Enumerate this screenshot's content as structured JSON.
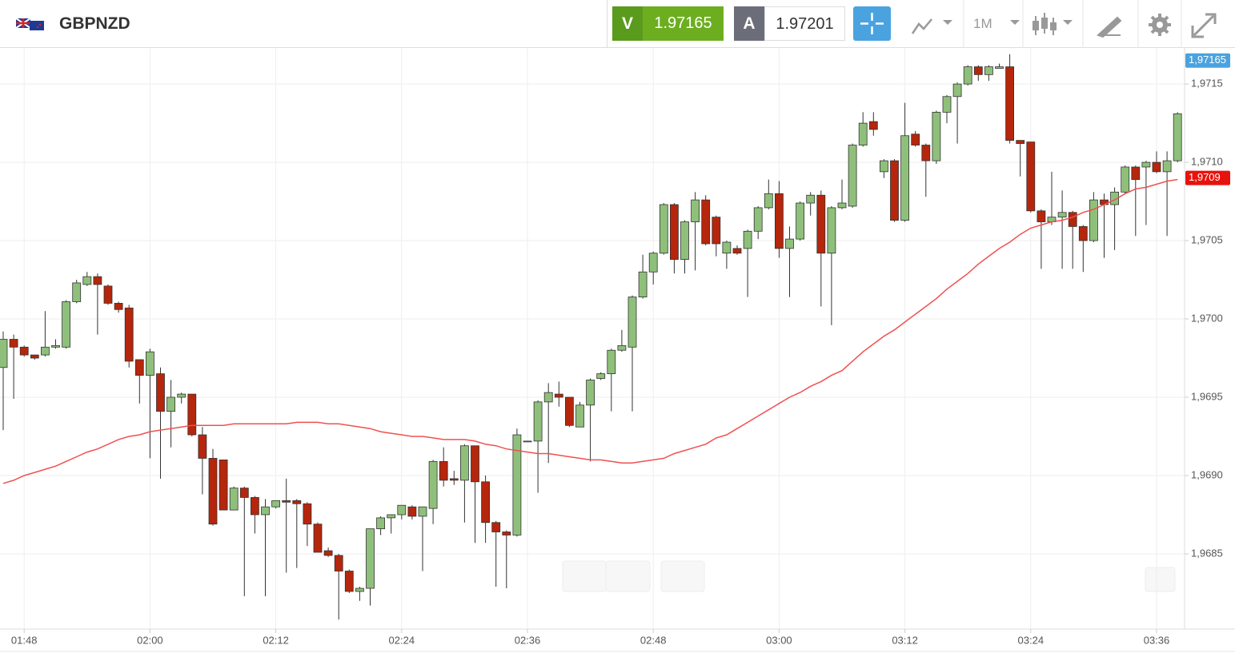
{
  "toolbar": {
    "symbol": "GBPNZD",
    "sell_label": "V",
    "sell_price": "1.97165",
    "buy_label": "A",
    "buy_price": "1.97201",
    "timeframe": "1M"
  },
  "chart_data": {
    "type": "candlestick",
    "categories": [
      null,
      null,
      "01:48",
      null,
      null,
      null,
      null,
      null,
      null,
      null,
      null,
      null,
      null,
      null,
      "02:00",
      null,
      null,
      null,
      null,
      null,
      null,
      null,
      null,
      null,
      null,
      null,
      "02:12",
      null,
      null,
      null,
      null,
      null,
      null,
      null,
      null,
      null,
      null,
      null,
      "02:24",
      null,
      null,
      null,
      null,
      null,
      null,
      null,
      null,
      null,
      null,
      null,
      "02:36",
      null,
      null,
      null,
      null,
      null,
      null,
      null,
      null,
      null,
      null,
      null,
      "02:48",
      null,
      null,
      null,
      null,
      null,
      null,
      null,
      null,
      null,
      null,
      null,
      "03:00",
      null,
      null,
      null,
      null,
      null,
      null,
      null,
      null,
      null,
      null,
      null,
      "03:12",
      null,
      null,
      null,
      null,
      null,
      null,
      null,
      null,
      null,
      null,
      null,
      "03:24",
      null,
      null,
      null,
      null,
      null,
      null,
      null,
      null,
      null,
      null,
      null,
      "03:36",
      null,
      null
    ],
    "open": [
      1.96969,
      1.96987,
      1.96982,
      1.96977,
      1.96977,
      1.96982,
      1.96982,
      1.97011,
      1.97022,
      1.97027,
      1.97021,
      1.9701,
      1.97007,
      1.96974,
      1.96964,
      1.96965,
      1.96941,
      1.9695,
      1.96952,
      1.96926,
      1.96911,
      1.9691,
      1.96878,
      1.96892,
      1.96886,
      1.96875,
      1.9688,
      1.96884,
      1.96884,
      1.96882,
      1.96869,
      1.96852,
      1.96849,
      1.96839,
      1.96826,
      1.96828,
      1.96866,
      1.96873,
      1.96875,
      1.9688,
      1.96874,
      1.96879,
      1.96909,
      1.96898,
      1.96897,
      1.96919,
      1.96896,
      1.9687,
      1.96864,
      1.96862,
      1.96922,
      1.96922,
      1.96947,
      1.96952,
      1.9695,
      1.96931,
      1.96945,
      1.96962,
      1.96965,
      1.9698,
      1.96982,
      1.97014,
      1.9703,
      1.97042,
      1.97073,
      1.97038,
      1.97062,
      1.97076,
      1.97065,
      1.97042,
      1.97045,
      1.97045,
      1.97056,
      1.97071,
      1.9708,
      1.97045,
      1.97051,
      1.97074,
      1.97079,
      1.97042,
      1.97071,
      1.97072,
      1.97111,
      1.97126,
      1.97094,
      1.97101,
      1.97063,
      1.97118,
      1.97111,
      1.97101,
      1.97132,
      1.97142,
      1.9715,
      1.97161,
      1.97156,
      1.9716,
      1.97161,
      1.97114,
      1.97113,
      1.97069,
      1.97062,
      1.97065,
      1.97068,
      1.97059,
      1.9705,
      1.97076,
      1.97073,
      1.97081,
      1.97097,
      1.97097,
      1.971,
      1.97094,
      1.97101
    ],
    "high": [
      1.96992,
      1.9699,
      1.96983,
      1.96977,
      1.97005,
      1.96987,
      1.97012,
      1.97025,
      1.9703,
      1.97029,
      1.97022,
      1.97011,
      1.97009,
      1.96974,
      1.96981,
      1.96969,
      1.96961,
      1.96953,
      1.96952,
      1.96931,
      1.96917,
      1.9691,
      1.96893,
      1.96893,
      1.96887,
      1.96885,
      1.96884,
      1.96898,
      1.96885,
      1.96883,
      1.9687,
      1.96854,
      1.9685,
      1.9684,
      1.96829,
      1.96866,
      1.96874,
      1.96875,
      1.96881,
      1.96881,
      1.9688,
      1.9691,
      1.96918,
      1.96903,
      1.9692,
      1.96919,
      1.969,
      1.96871,
      1.96865,
      1.9693,
      1.96922,
      1.96948,
      1.96959,
      1.9696,
      1.9695,
      1.96947,
      1.96962,
      1.96966,
      1.96981,
      1.96993,
      1.97015,
      1.97041,
      1.97043,
      1.97074,
      1.97074,
      1.97063,
      1.97081,
      1.97079,
      1.97066,
      1.9705,
      1.97047,
      1.97057,
      1.97072,
      1.97089,
      1.97088,
      1.97059,
      1.97075,
      1.97081,
      1.97082,
      1.97072,
      1.97089,
      1.97112,
      1.97132,
      1.97132,
      1.97102,
      1.97102,
      1.97138,
      1.9712,
      1.97112,
      1.97133,
      1.97143,
      1.97151,
      1.97162,
      1.97162,
      1.97162,
      1.97163,
      1.97169,
      1.97114,
      1.97113,
      1.9707,
      1.97094,
      1.97082,
      1.97069,
      1.9706,
      1.97081,
      1.9708,
      1.97084,
      1.97098,
      1.97098,
      1.97101,
      1.97107,
      1.97107,
      1.97132
    ],
    "low": [
      1.96929,
      1.96949,
      1.96976,
      1.96974,
      1.96976,
      1.96981,
      1.96981,
      1.9701,
      1.97021,
      1.9699,
      1.97009,
      1.97004,
      1.96969,
      1.96946,
      1.96911,
      1.96898,
      1.96918,
      1.96946,
      1.96925,
      1.96888,
      1.96868,
      1.96878,
      1.96878,
      1.96823,
      1.96863,
      1.96823,
      1.96879,
      1.96838,
      1.96841,
      1.96855,
      1.96851,
      1.96848,
      1.96808,
      1.96825,
      1.9682,
      1.96817,
      1.96862,
      1.96863,
      1.96872,
      1.96872,
      1.96839,
      1.96869,
      1.96893,
      1.96894,
      1.9687,
      1.96857,
      1.96857,
      1.96829,
      1.96828,
      1.96861,
      1.96922,
      1.96889,
      1.96908,
      1.96944,
      1.96931,
      1.96931,
      1.96909,
      1.96961,
      1.96941,
      1.96979,
      1.96941,
      1.97013,
      1.97022,
      1.97041,
      1.97029,
      1.97029,
      1.97031,
      1.97047,
      1.9704,
      1.97032,
      1.97041,
      1.97014,
      1.97051,
      1.9707,
      1.97039,
      1.97014,
      1.9705,
      1.97066,
      1.97008,
      1.96996,
      1.9707,
      1.97071,
      1.9711,
      1.97117,
      1.9709,
      1.97062,
      1.97062,
      1.9711,
      1.97078,
      1.97099,
      1.97125,
      1.97112,
      1.97149,
      1.97152,
      1.97152,
      1.9716,
      1.97112,
      1.97091,
      1.97068,
      1.97032,
      1.9706,
      1.97032,
      1.97032,
      1.9703,
      1.97049,
      1.97039,
      1.97044,
      1.9708,
      1.97053,
      1.9706,
      1.97093,
      1.97053,
      1.971
    ],
    "close": [
      1.96987,
      1.96982,
      1.96977,
      1.96975,
      1.96982,
      1.96983,
      1.97011,
      1.97023,
      1.97027,
      1.97022,
      1.9701,
      1.97006,
      1.96973,
      1.96964,
      1.96979,
      1.96941,
      1.9695,
      1.96952,
      1.96926,
      1.96911,
      1.96869,
      1.96878,
      1.96892,
      1.96886,
      1.96875,
      1.9688,
      1.96884,
      1.96883,
      1.96882,
      1.96869,
      1.96851,
      1.96849,
      1.96839,
      1.96826,
      1.96828,
      1.96866,
      1.96873,
      1.96875,
      1.96881,
      1.96874,
      1.9688,
      1.96909,
      1.96897,
      1.96897,
      1.96919,
      1.96896,
      1.9687,
      1.96864,
      1.96862,
      1.96926,
      1.96922,
      1.96947,
      1.96953,
      1.9695,
      1.96932,
      1.96945,
      1.96961,
      1.96965,
      1.9698,
      1.96983,
      1.97014,
      1.9703,
      1.97042,
      1.97073,
      1.97038,
      1.97062,
      1.97076,
      1.97048,
      1.97048,
      1.97049,
      1.97042,
      1.97056,
      1.97071,
      1.9708,
      1.97045,
      1.97051,
      1.97074,
      1.97079,
      1.97042,
      1.97071,
      1.97074,
      1.97111,
      1.97125,
      1.97121,
      1.97101,
      1.97063,
      1.97117,
      1.97111,
      1.97101,
      1.97132,
      1.97142,
      1.9715,
      1.97161,
      1.97156,
      1.97161,
      1.97161,
      1.97114,
      1.97112,
      1.97069,
      1.97062,
      1.97065,
      1.97068,
      1.97059,
      1.9705,
      1.97076,
      1.97073,
      1.97081,
      1.97097,
      1.97089,
      1.971,
      1.97094,
      1.97101,
      1.97131
    ],
    "up_color": "#8fc07b",
    "down_color": "#b5260c",
    "ma": {
      "color": "#f05050",
      "values": [
        1.96895,
        1.96897,
        1.969,
        1.96902,
        1.96904,
        1.96906,
        1.96909,
        1.96912,
        1.96915,
        1.96917,
        1.9692,
        1.96923,
        1.96925,
        1.96926,
        1.96928,
        1.96929,
        1.9693,
        1.96931,
        1.96932,
        1.96932,
        1.96932,
        1.96932,
        1.96933,
        1.96933,
        1.96933,
        1.96933,
        1.96933,
        1.96933,
        1.96934,
        1.96934,
        1.96934,
        1.96933,
        1.96933,
        1.96932,
        1.96931,
        1.9693,
        1.96928,
        1.96927,
        1.96926,
        1.96925,
        1.96925,
        1.96924,
        1.96923,
        1.96923,
        1.96923,
        1.96922,
        1.9692,
        1.96919,
        1.96917,
        1.96916,
        1.96915,
        1.96914,
        1.96914,
        1.96913,
        1.96912,
        1.96911,
        1.9691,
        1.9691,
        1.96909,
        1.96908,
        1.96908,
        1.96909,
        1.9691,
        1.96911,
        1.96914,
        1.96916,
        1.96918,
        1.9692,
        1.96924,
        1.96926,
        1.9693,
        1.96934,
        1.96938,
        1.96942,
        1.96946,
        1.9695,
        1.96953,
        1.96957,
        1.9696,
        1.96964,
        1.96967,
        1.96973,
        1.96979,
        1.96984,
        1.96989,
        1.96993,
        1.96998,
        1.97003,
        1.97008,
        1.97013,
        1.97019,
        1.97024,
        1.97029,
        1.97035,
        1.9704,
        1.97045,
        1.97049,
        1.97054,
        1.97058,
        1.9706,
        1.97062,
        1.97063,
        1.97065,
        1.97068,
        1.9707,
        1.97073,
        1.97076,
        1.9708,
        1.97083,
        1.97084,
        1.97086,
        1.97088,
        1.97089
      ]
    },
    "ylim": [
      1.96802,
      1.97172
    ],
    "yticks": [
      {
        "value": 1.9685,
        "label": "1,9685"
      },
      {
        "value": 1.969,
        "label": "1,9690"
      },
      {
        "value": 1.9695,
        "label": "1,9695"
      },
      {
        "value": 1.97,
        "label": "1,9700"
      },
      {
        "value": 1.9705,
        "label": "1,9705"
      },
      {
        "value": 1.971,
        "label": "1,9710"
      },
      {
        "value": 1.9715,
        "label": "1,9715"
      }
    ],
    "grid": true,
    "price_markers": [
      {
        "value": 1.97165,
        "label": "1,97165",
        "color": "#4aa3df"
      },
      {
        "value": 1.9709,
        "label": "1,9709",
        "color": "#e8120c"
      }
    ]
  }
}
